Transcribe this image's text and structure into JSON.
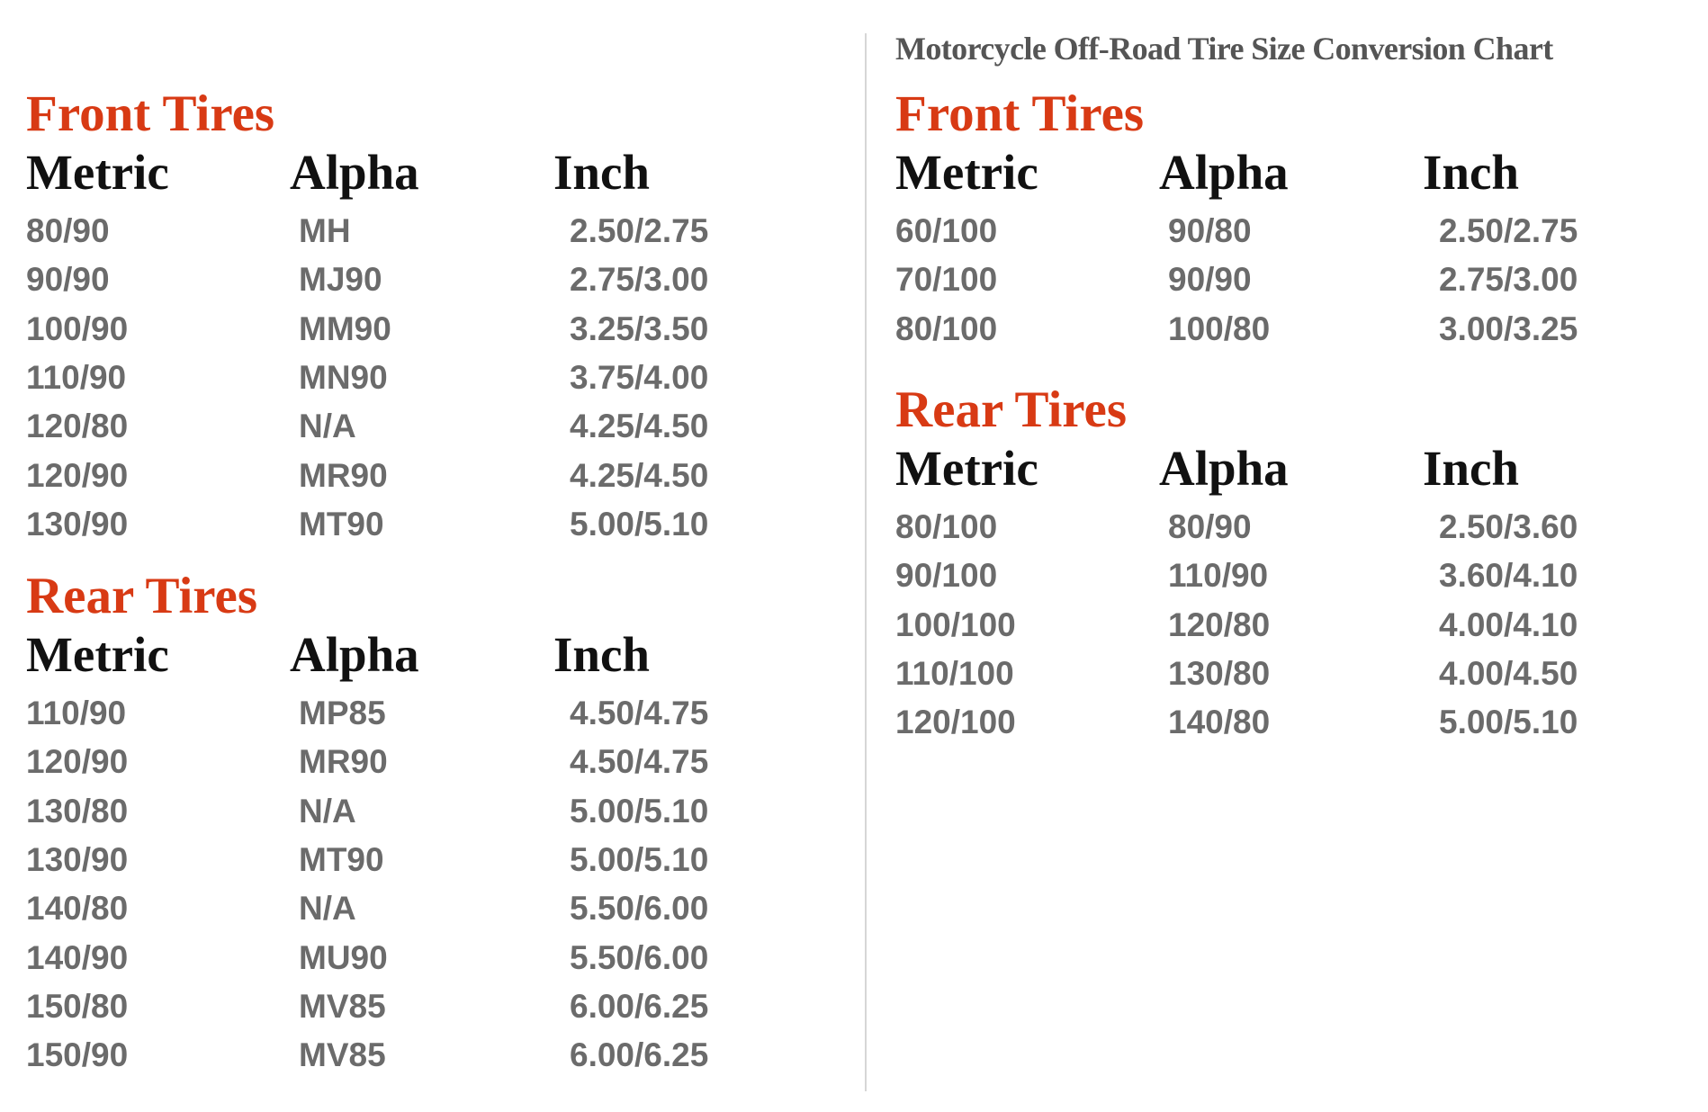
{
  "title": "Motorcycle Off-Road Tire Size Conversion Chart",
  "colors": {
    "heading": "#d83a14",
    "column_header": "#111111",
    "data": "#6b6b6b",
    "title": "#555555"
  },
  "columns": [
    "Metric",
    "Alpha",
    "Inch"
  ],
  "left": {
    "front": {
      "heading": "Front Tires",
      "rows": [
        [
          "80/90",
          "MH",
          "2.50/2.75"
        ],
        [
          "90/90",
          "MJ90",
          "2.75/3.00"
        ],
        [
          "100/90",
          "MM90",
          "3.25/3.50"
        ],
        [
          "110/90",
          "MN90",
          "3.75/4.00"
        ],
        [
          "120/80",
          "N/A",
          "4.25/4.50"
        ],
        [
          "120/90",
          "MR90",
          "4.25/4.50"
        ],
        [
          "130/90",
          "MT90",
          "5.00/5.10"
        ]
      ]
    },
    "rear": {
      "heading": "Rear Tires",
      "rows": [
        [
          "110/90",
          "MP85",
          "4.50/4.75"
        ],
        [
          "120/90",
          "MR90",
          "4.50/4.75"
        ],
        [
          "130/80",
          "N/A",
          "5.00/5.10"
        ],
        [
          "130/90",
          "MT90",
          "5.00/5.10"
        ],
        [
          "140/80",
          "N/A",
          "5.50/6.00"
        ],
        [
          "140/90",
          "MU90",
          "5.50/6.00"
        ],
        [
          "150/80",
          "MV85",
          "6.00/6.25"
        ],
        [
          "150/90",
          "MV85",
          "6.00/6.25"
        ]
      ]
    }
  },
  "right": {
    "front": {
      "heading": "Front Tires",
      "rows": [
        [
          "60/100",
          "90/80",
          "2.50/2.75"
        ],
        [
          "70/100",
          "90/90",
          "2.75/3.00"
        ],
        [
          "80/100",
          "100/80",
          "3.00/3.25"
        ]
      ]
    },
    "rear": {
      "heading": "Rear Tires",
      "rows": [
        [
          "80/100",
          "80/90",
          "2.50/3.60"
        ],
        [
          "90/100",
          "110/90",
          "3.60/4.10"
        ],
        [
          "100/100",
          "120/80",
          "4.00/4.10"
        ],
        [
          "110/100",
          "130/80",
          "4.00/4.50"
        ],
        [
          "120/100",
          "140/80",
          "5.00/5.10"
        ]
      ]
    }
  }
}
